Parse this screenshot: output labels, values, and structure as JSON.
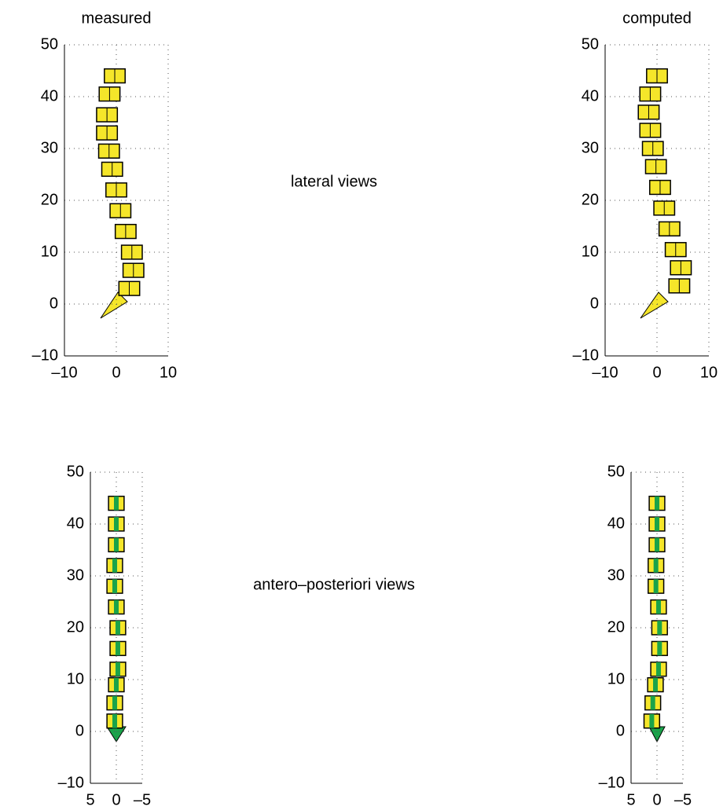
{
  "chart_data": [
    {
      "type": "spine",
      "title": "measured",
      "xlim": [
        -10,
        10
      ],
      "ylim": [
        -10,
        50
      ],
      "xticks": [
        {
          "value": -10,
          "label": "–10"
        },
        0,
        10
      ],
      "yticks": [
        {
          "value": -10,
          "label": "–10"
        },
        0,
        10,
        20,
        30,
        40,
        50
      ],
      "grid": true,
      "x": [
        -0.3,
        -1.3,
        -1.8,
        -1.8,
        -1.4,
        -0.8,
        0,
        0.8,
        1.8,
        3,
        3.3,
        2.5
      ],
      "values": [
        44,
        40.5,
        36.5,
        33,
        29.5,
        26,
        22,
        18,
        14,
        10,
        6.5,
        3
      ]
    },
    {
      "type": "spine",
      "title": "computed",
      "xlim": [
        -10,
        10
      ],
      "ylim": [
        -10,
        50
      ],
      "xticks": [
        {
          "value": -10,
          "label": "–10"
        },
        0,
        10
      ],
      "yticks": [
        {
          "value": -10,
          "label": "–10"
        },
        0,
        10,
        20,
        30,
        40,
        50
      ],
      "grid": true,
      "x": [
        0,
        -1.3,
        -1.6,
        -1.3,
        -0.8,
        -0.2,
        0.6,
        1.4,
        2.4,
        3.6,
        4.6,
        4.3
      ],
      "values": [
        44,
        40.5,
        37,
        33.5,
        30,
        26.5,
        22.5,
        18.5,
        14.5,
        10.5,
        7,
        3.5
      ]
    },
    {
      "type": "spine",
      "xlim": [
        5,
        -5
      ],
      "ylim": [
        -10,
        50
      ],
      "xticks": [
        5,
        0,
        {
          "value": -5,
          "label": "–5"
        }
      ],
      "yticks": [
        {
          "value": -10,
          "label": "–10"
        },
        0,
        10,
        20,
        30,
        40,
        50
      ],
      "grid": true,
      "x": [
        0,
        0,
        0,
        0.3,
        0.3,
        0,
        -0.3,
        -0.3,
        -0.3,
        0,
        0.3,
        0.3
      ],
      "values": [
        44,
        40,
        36,
        32,
        28,
        24,
        20,
        16,
        12,
        9,
        5.5,
        2
      ]
    },
    {
      "type": "spine",
      "xlim": [
        5,
        -5
      ],
      "ylim": [
        -10,
        50
      ],
      "xticks": [
        5,
        0,
        {
          "value": -5,
          "label": "–5"
        }
      ],
      "yticks": [
        {
          "value": -10,
          "label": "–10"
        },
        0,
        10,
        20,
        30,
        40,
        50
      ],
      "grid": true,
      "x": [
        0,
        0,
        0,
        0.2,
        0.2,
        -0.3,
        -0.5,
        -0.5,
        -0.3,
        0.3,
        0.8,
        1
      ],
      "values": [
        44,
        40,
        36,
        32,
        28,
        24,
        20,
        16,
        12,
        9,
        5.5,
        2
      ]
    }
  ],
  "annotations": [
    "lateral views",
    "antero–posteriori views"
  ]
}
